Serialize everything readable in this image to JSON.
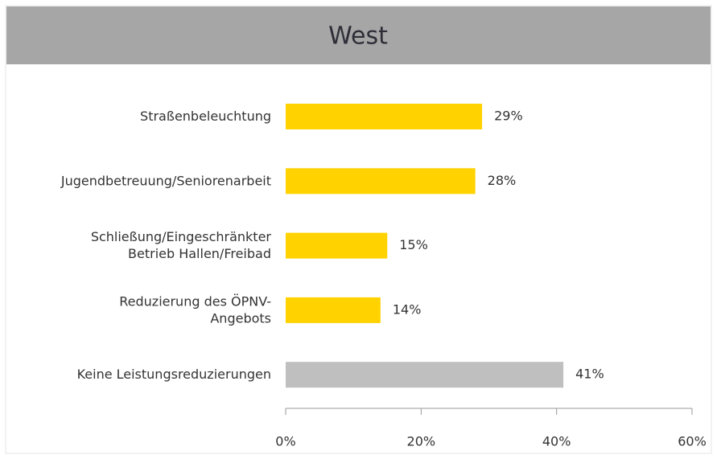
{
  "chart_data": {
    "type": "hbar",
    "title": "West",
    "categories": [
      [
        "Straßenbeleuchtung"
      ],
      [
        "Jugendbetreuung/Seniorenarbeit"
      ],
      [
        "Schließung/Eingeschränkter",
        "Betrieb Hallen/Freibad"
      ],
      [
        "Reduzierung des ÖPNV-",
        "Angebots"
      ],
      [
        "Keine Leistungsreduzierungen"
      ]
    ],
    "values": [
      29,
      28,
      15,
      14,
      41
    ],
    "value_labels": [
      "29%",
      "28%",
      "15%",
      "14%",
      "41%"
    ],
    "colors": [
      "#FFD200",
      "#FFD200",
      "#FFD200",
      "#FFD200",
      "#BFBFBF"
    ],
    "xlim": [
      0,
      60
    ],
    "xticks": [
      {
        "value": 0,
        "label": "0%"
      },
      {
        "value": 20,
        "label": "20%"
      },
      {
        "value": 40,
        "label": "40%"
      },
      {
        "value": 60,
        "label": "60%"
      }
    ]
  }
}
